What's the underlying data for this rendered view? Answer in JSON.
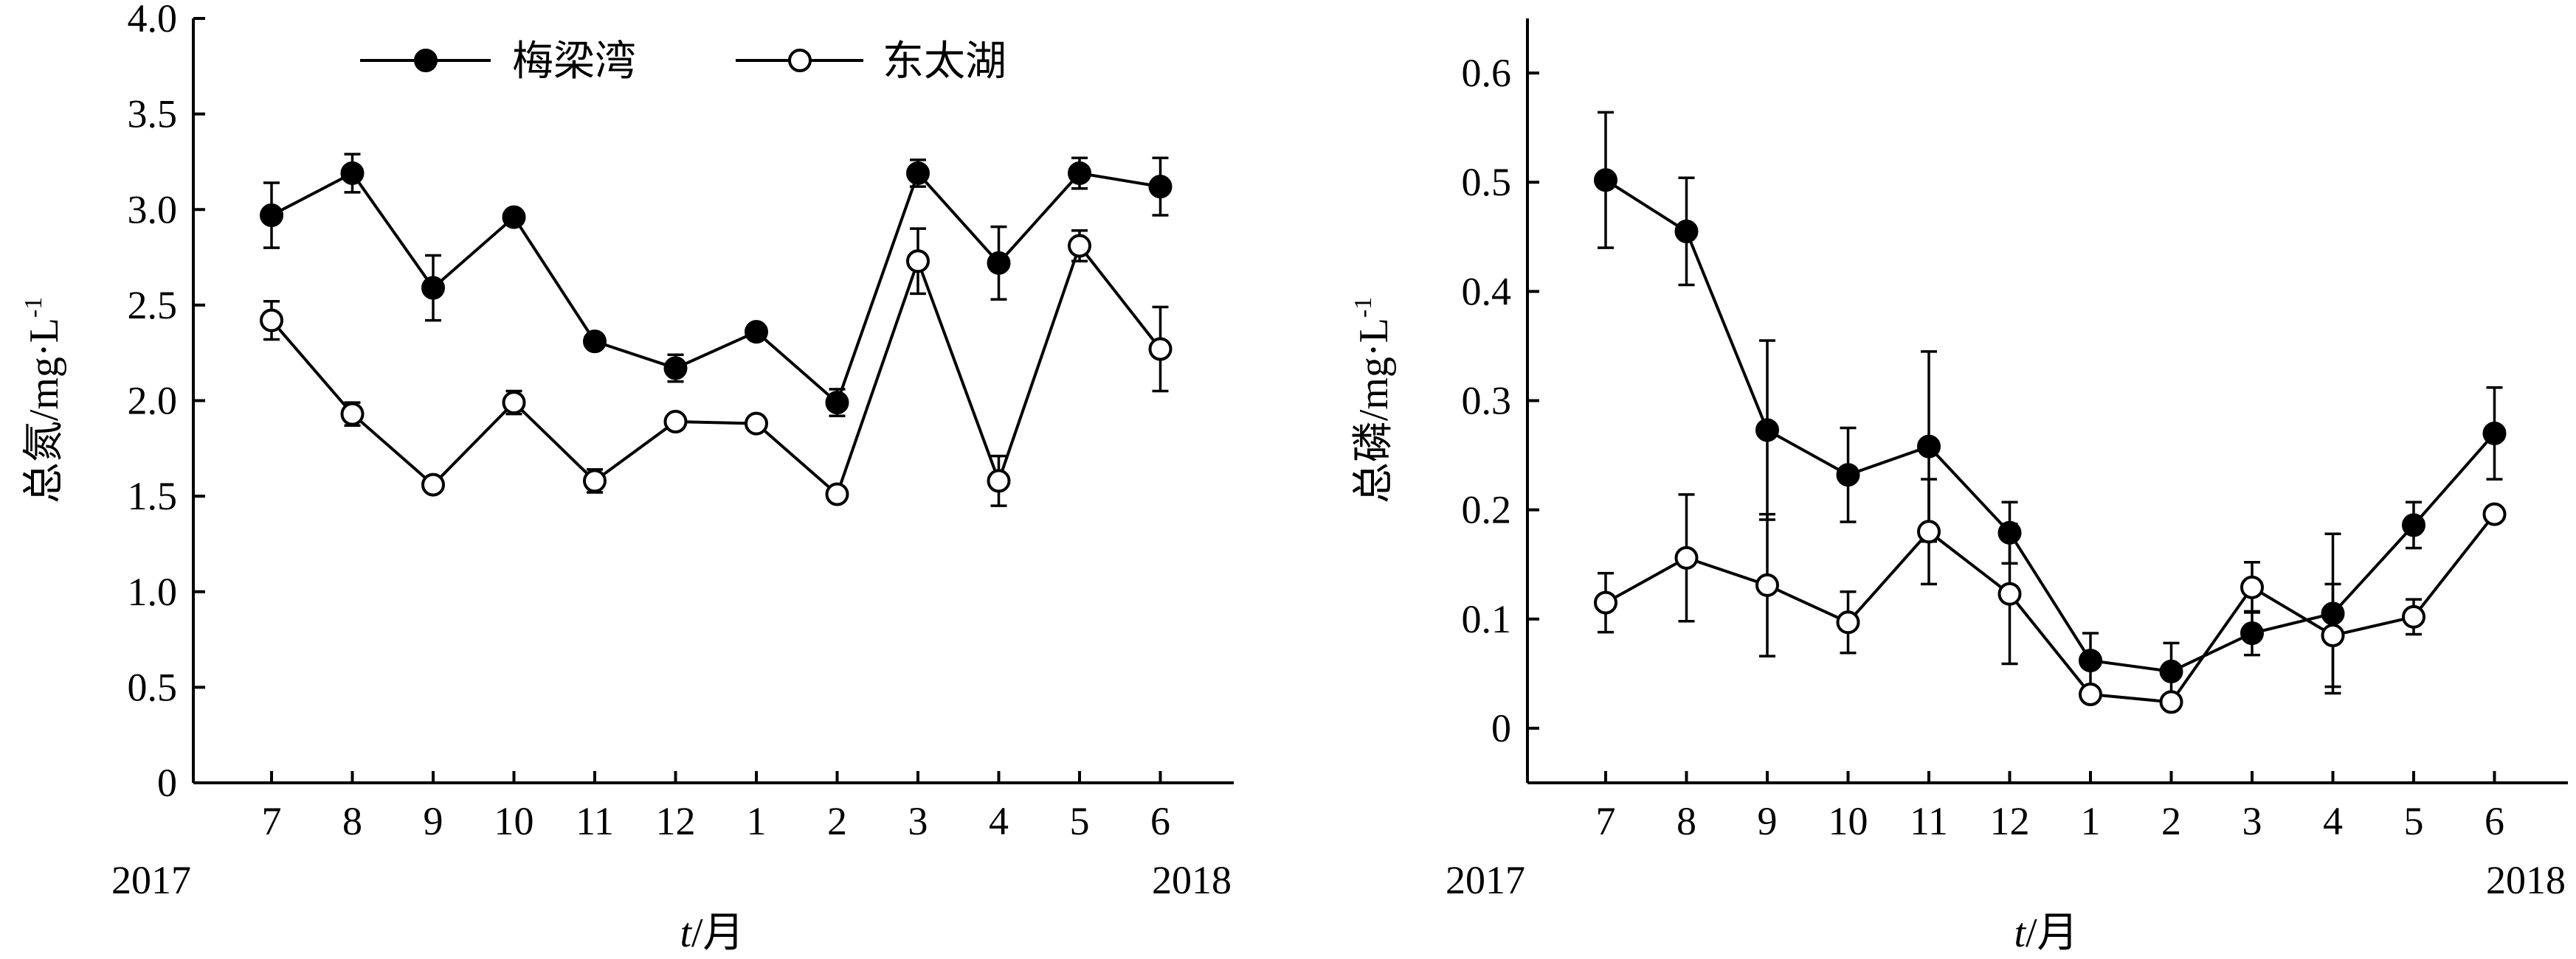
{
  "chart_data": [
    {
      "type": "line",
      "categories": [
        "7",
        "8",
        "9",
        "10",
        "11",
        "12",
        "1",
        "2",
        "3",
        "4",
        "5",
        "6"
      ],
      "year_start": "2017",
      "year_end": "2018",
      "xlabel_italic": "t",
      "xlabel_unit": "/月",
      "ylabel_main": "总氮/mg",
      "ylabel_unit": "·L",
      "ylabel_sup": "-1",
      "ylim": [
        0,
        4.0
      ],
      "yticks": [
        "0",
        "0.5",
        "1.0",
        "1.5",
        "2.0",
        "2.5",
        "3.0",
        "3.5",
        "4.0"
      ],
      "legend_position": "top-left",
      "series": [
        {
          "name": "梅梁湾",
          "marker": "filled",
          "values": [
            2.97,
            3.19,
            2.59,
            2.96,
            2.31,
            2.17,
            2.36,
            1.99,
            3.19,
            2.72,
            3.19,
            3.12
          ],
          "errors": [
            0.17,
            0.1,
            0.17,
            0.0,
            0.0,
            0.07,
            0.0,
            0.07,
            0.07,
            0.19,
            0.08,
            0.15
          ]
        },
        {
          "name": "东太湖",
          "marker": "open",
          "values": [
            2.42,
            1.93,
            1.56,
            1.99,
            1.58,
            1.89,
            1.88,
            1.51,
            2.73,
            1.58,
            2.81,
            2.27
          ],
          "errors": [
            0.1,
            0.06,
            0.0,
            0.06,
            0.06,
            0.0,
            0.0,
            0.0,
            0.17,
            0.13,
            0.08,
            0.22
          ]
        }
      ]
    },
    {
      "type": "line",
      "categories": [
        "7",
        "8",
        "9",
        "10",
        "11",
        "12",
        "1",
        "2",
        "3",
        "4",
        "5",
        "6"
      ],
      "year_start": "2017",
      "year_end": "2018",
      "xlabel_italic": "t",
      "xlabel_unit": "/月",
      "ylabel_main": "总磷/mg",
      "ylabel_unit": "·L",
      "ylabel_sup": "-1",
      "ylim": [
        -0.05,
        0.65
      ],
      "yticks": [
        "0",
        "0.1",
        "0.2",
        "0.3",
        "0.4",
        "0.5",
        "0.6"
      ],
      "series": [
        {
          "name": "梅梁湾",
          "marker": "filled",
          "values": [
            0.502,
            0.455,
            0.273,
            0.232,
            0.258,
            0.179,
            0.062,
            0.052,
            0.087,
            0.105,
            0.186,
            0.27
          ],
          "errors": [
            0.062,
            0.049,
            0.082,
            0.043,
            0.087,
            0.028,
            0.025,
            0.026,
            0.02,
            0.073,
            0.021,
            0.042
          ]
        },
        {
          "name": "东太湖",
          "marker": "open",
          "values": [
            0.115,
            0.156,
            0.131,
            0.097,
            0.18,
            0.123,
            0.031,
            0.024,
            0.129,
            0.085,
            0.102,
            0.196
          ],
          "errors": [
            0.027,
            0.058,
            0.065,
            0.028,
            0.048,
            0.064,
            0.0,
            0.0,
            0.023,
            0.047,
            0.016,
            0.0
          ]
        }
      ]
    }
  ]
}
